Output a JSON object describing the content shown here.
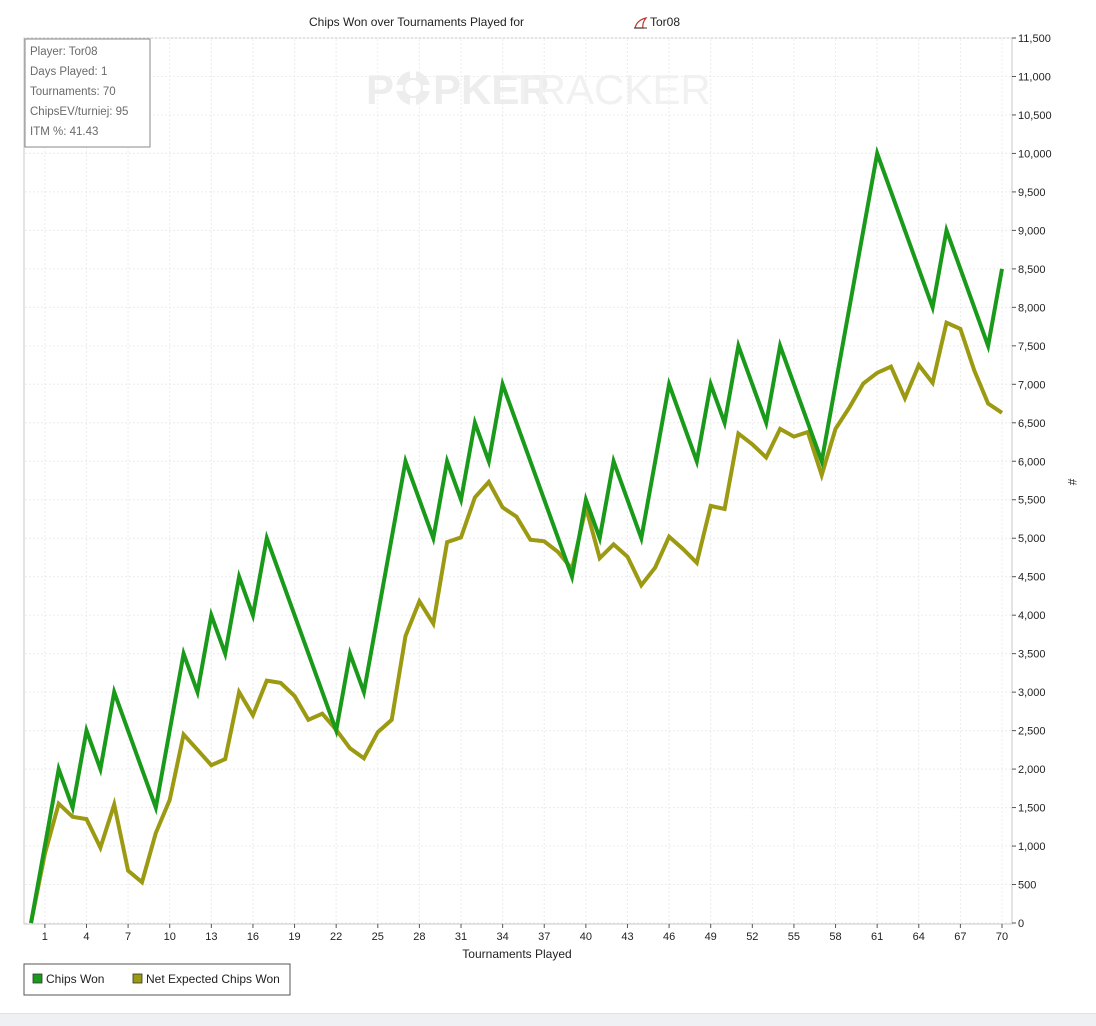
{
  "chart_data": {
    "type": "line",
    "title": "Chips Won over Tournaments Played for",
    "player_name": "Tor08",
    "title_icon": "shark-fin-icon",
    "watermark": {
      "left": "PKER",
      "right": "TRACKER"
    },
    "xlabel": "Tournaments Played",
    "ylabel": "#",
    "xlim": [
      0,
      70
    ],
    "ylim": [
      0,
      11500
    ],
    "x_ticks": [
      1,
      4,
      7,
      10,
      13,
      16,
      19,
      22,
      25,
      28,
      31,
      34,
      37,
      40,
      43,
      46,
      49,
      52,
      55,
      58,
      61,
      64,
      67,
      70
    ],
    "y_ticks": [
      0,
      500,
      1000,
      1500,
      2000,
      2500,
      3000,
      3500,
      4000,
      4500,
      5000,
      5500,
      6000,
      6500,
      7000,
      7500,
      8000,
      8500,
      9000,
      9500,
      10000,
      10500,
      11000,
      11500
    ],
    "y_tick_labels": [
      "0",
      "500",
      "1,000",
      "1,500",
      "2,000",
      "2,500",
      "3,000",
      "3,500",
      "4,000",
      "4,500",
      "5,000",
      "5,500",
      "6,000",
      "6,500",
      "7,000",
      "7,500",
      "8,000",
      "8,500",
      "9,000",
      "9,500",
      "10,000",
      "10,500",
      "11,000",
      "11,500"
    ],
    "info_box": [
      "Player: Tor08",
      "Days Played: 1",
      "Tournaments: 70",
      "ChipsEV/turniej: 95",
      "ITM %: 41.43"
    ],
    "series": [
      {
        "name": "Chips Won",
        "color": "#1a9a1a",
        "points": [
          [
            0,
            0
          ],
          [
            2,
            2000
          ],
          [
            3,
            1500
          ],
          [
            4,
            2500
          ],
          [
            5,
            2000
          ],
          [
            6,
            3000
          ],
          [
            9,
            1500
          ],
          [
            11,
            3500
          ],
          [
            12,
            3000
          ],
          [
            13,
            4000
          ],
          [
            14,
            3500
          ],
          [
            15,
            4500
          ],
          [
            16,
            4000
          ],
          [
            17,
            5000
          ],
          [
            22,
            2500
          ],
          [
            23,
            3500
          ],
          [
            24,
            3000
          ],
          [
            27,
            6000
          ],
          [
            29,
            5000
          ],
          [
            30,
            6000
          ],
          [
            31,
            5500
          ],
          [
            32,
            6500
          ],
          [
            33,
            6000
          ],
          [
            34,
            7000
          ],
          [
            39,
            4500
          ],
          [
            40,
            5500
          ],
          [
            41,
            5000
          ],
          [
            42,
            6000
          ],
          [
            44,
            5000
          ],
          [
            46,
            7000
          ],
          [
            48,
            6000
          ],
          [
            49,
            7000
          ],
          [
            50,
            6500
          ],
          [
            51,
            7500
          ],
          [
            53,
            6500
          ],
          [
            54,
            7500
          ],
          [
            57,
            6000
          ],
          [
            61,
            10000
          ],
          [
            65,
            8000
          ],
          [
            66,
            9000
          ],
          [
            69,
            7500
          ],
          [
            70,
            8500
          ]
        ]
      },
      {
        "name": "Net Expected Chips Won",
        "color": "#9c9a12",
        "points": [
          [
            0,
            0
          ],
          [
            1,
            900
          ],
          [
            2,
            1550
          ],
          [
            3,
            1380
          ],
          [
            4,
            1350
          ],
          [
            5,
            980
          ],
          [
            6,
            1540
          ],
          [
            7,
            680
          ],
          [
            8,
            530
          ],
          [
            9,
            1170
          ],
          [
            10,
            1600
          ],
          [
            11,
            2450
          ],
          [
            12,
            2250
          ],
          [
            13,
            2050
          ],
          [
            14,
            2130
          ],
          [
            15,
            3000
          ],
          [
            16,
            2700
          ],
          [
            17,
            3150
          ],
          [
            18,
            3120
          ],
          [
            19,
            2950
          ],
          [
            20,
            2640
          ],
          [
            21,
            2720
          ],
          [
            22,
            2510
          ],
          [
            23,
            2270
          ],
          [
            24,
            2140
          ],
          [
            25,
            2480
          ],
          [
            26,
            2640
          ],
          [
            27,
            3730
          ],
          [
            28,
            4180
          ],
          [
            29,
            3890
          ],
          [
            30,
            4950
          ],
          [
            31,
            5010
          ],
          [
            32,
            5530
          ],
          [
            33,
            5730
          ],
          [
            34,
            5400
          ],
          [
            35,
            5280
          ],
          [
            36,
            4980
          ],
          [
            37,
            4960
          ],
          [
            38,
            4820
          ],
          [
            39,
            4600
          ],
          [
            40,
            5400
          ],
          [
            41,
            4740
          ],
          [
            42,
            4920
          ],
          [
            43,
            4760
          ],
          [
            44,
            4390
          ],
          [
            45,
            4620
          ],
          [
            46,
            5020
          ],
          [
            47,
            4860
          ],
          [
            48,
            4680
          ],
          [
            49,
            5420
          ],
          [
            50,
            5380
          ],
          [
            51,
            6360
          ],
          [
            52,
            6220
          ],
          [
            53,
            6050
          ],
          [
            54,
            6420
          ],
          [
            55,
            6320
          ],
          [
            56,
            6380
          ],
          [
            57,
            5820
          ],
          [
            58,
            6420
          ],
          [
            59,
            6700
          ],
          [
            60,
            7010
          ],
          [
            61,
            7150
          ],
          [
            62,
            7230
          ],
          [
            63,
            6820
          ],
          [
            64,
            7250
          ],
          [
            65,
            7020
          ],
          [
            66,
            7800
          ],
          [
            67,
            7720
          ],
          [
            68,
            7180
          ],
          [
            69,
            6750
          ],
          [
            70,
            6630
          ]
        ]
      }
    ],
    "legend": [
      "Chips Won",
      "Net Expected Chips Won"
    ]
  }
}
